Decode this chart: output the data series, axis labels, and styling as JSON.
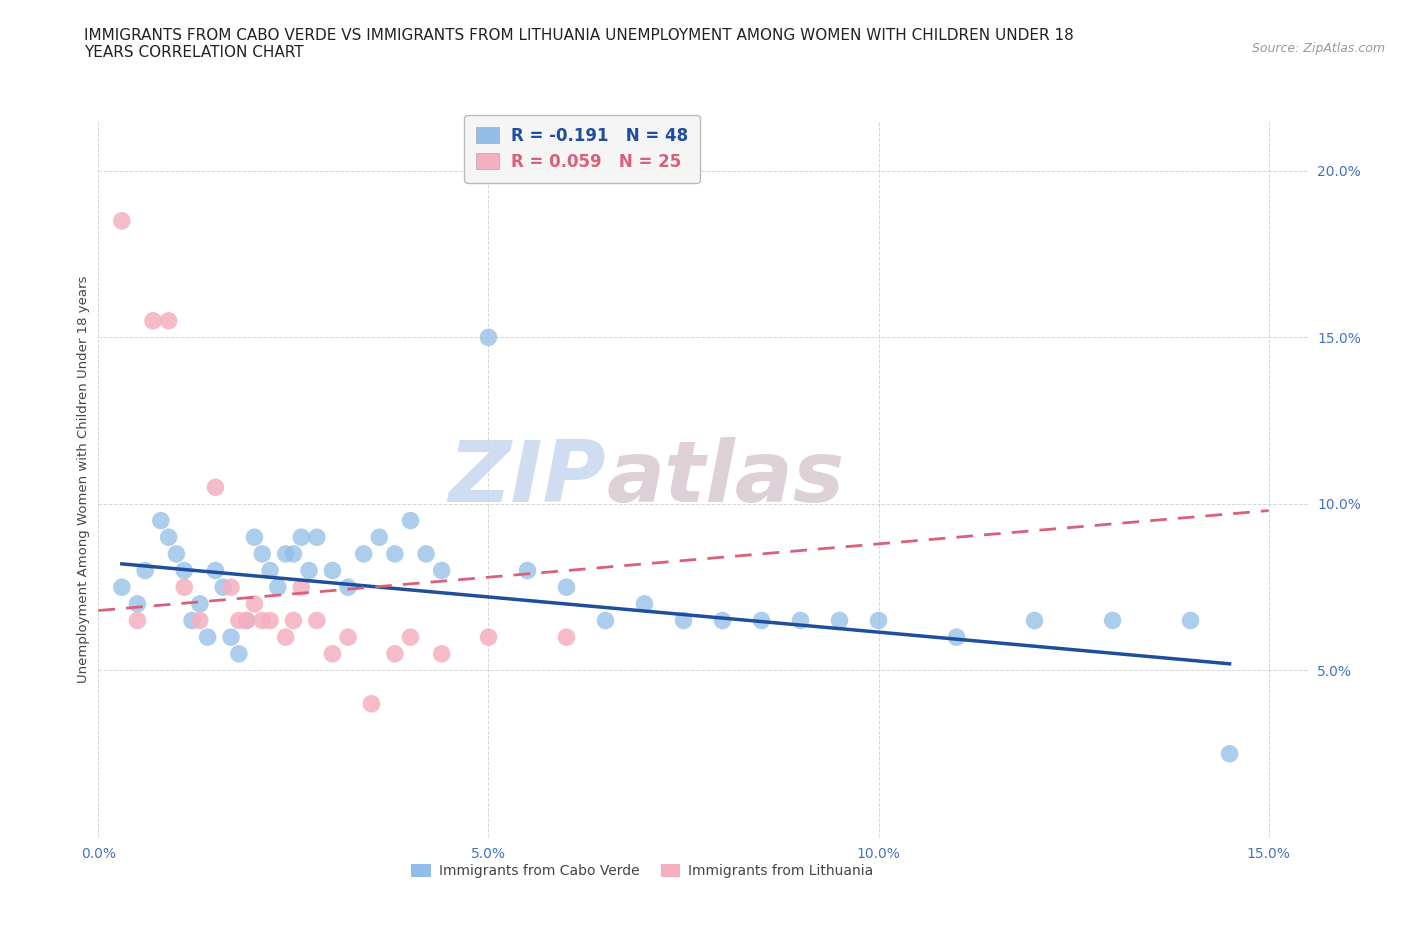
{
  "title_line1": "IMMIGRANTS FROM CABO VERDE VS IMMIGRANTS FROM LITHUANIA UNEMPLOYMENT AMONG WOMEN WITH CHILDREN UNDER 18",
  "title_line2": "YEARS CORRELATION CHART",
  "source": "Source: ZipAtlas.com",
  "ylabel": "Unemployment Among Women with Children Under 18 years",
  "watermark_zip": "ZIP",
  "watermark_atlas": "atlas",
  "legend1_label": "R = -0.191   N = 48",
  "legend2_label": "R = 0.059   N = 25",
  "cabo_verde_color": "#92bde8",
  "lithuania_color": "#f5afc0",
  "cabo_verde_line_color": "#1f4e9c",
  "lithuania_line_color": "#d9607a",
  "xlim": [
    0.0,
    0.155
  ],
  "ylim": [
    0.0,
    0.215
  ],
  "xticks": [
    0.0,
    0.05,
    0.1,
    0.15
  ],
  "yticks": [
    0.05,
    0.1,
    0.15,
    0.2
  ],
  "xtick_labels": [
    "0.0%",
    "5.0%",
    "10.0%",
    "15.0%"
  ],
  "ytick_labels": [
    "5.0%",
    "10.0%",
    "15.0%",
    "20.0%"
  ],
  "cabo_verde_x": [
    0.003,
    0.005,
    0.006,
    0.008,
    0.009,
    0.01,
    0.011,
    0.012,
    0.013,
    0.014,
    0.015,
    0.016,
    0.017,
    0.018,
    0.019,
    0.02,
    0.021,
    0.022,
    0.023,
    0.024,
    0.025,
    0.026,
    0.027,
    0.028,
    0.03,
    0.032,
    0.034,
    0.036,
    0.038,
    0.04,
    0.042,
    0.044,
    0.05,
    0.055,
    0.06,
    0.065,
    0.07,
    0.075,
    0.08,
    0.085,
    0.09,
    0.095,
    0.1,
    0.11,
    0.12,
    0.13,
    0.14,
    0.145
  ],
  "cabo_verde_y": [
    0.075,
    0.07,
    0.08,
    0.095,
    0.09,
    0.085,
    0.08,
    0.065,
    0.07,
    0.06,
    0.08,
    0.075,
    0.06,
    0.055,
    0.065,
    0.09,
    0.085,
    0.08,
    0.075,
    0.085,
    0.085,
    0.09,
    0.08,
    0.09,
    0.08,
    0.075,
    0.085,
    0.09,
    0.085,
    0.095,
    0.085,
    0.08,
    0.15,
    0.08,
    0.075,
    0.065,
    0.07,
    0.065,
    0.065,
    0.065,
    0.065,
    0.065,
    0.065,
    0.06,
    0.065,
    0.065,
    0.065,
    0.025
  ],
  "lithuania_x": [
    0.003,
    0.005,
    0.007,
    0.009,
    0.011,
    0.013,
    0.015,
    0.017,
    0.018,
    0.019,
    0.02,
    0.021,
    0.022,
    0.024,
    0.025,
    0.026,
    0.028,
    0.03,
    0.032,
    0.035,
    0.038,
    0.04,
    0.044,
    0.05,
    0.06
  ],
  "lithuania_y": [
    0.185,
    0.065,
    0.155,
    0.155,
    0.075,
    0.065,
    0.105,
    0.075,
    0.065,
    0.065,
    0.07,
    0.065,
    0.065,
    0.06,
    0.065,
    0.075,
    0.065,
    0.055,
    0.06,
    0.04,
    0.055,
    0.06,
    0.055,
    0.06,
    0.06
  ],
  "background_color": "#ffffff",
  "grid_color": "#cccccc",
  "title_fontsize": 11,
  "tick_label_color": "#4472c4",
  "source_fontsize": 9,
  "legend_fontsize": 12,
  "cabo_line_x0": 0.003,
  "cabo_line_x1": 0.145,
  "cabo_line_y0": 0.082,
  "cabo_line_y1": 0.052,
  "lith_line_x0": 0.0,
  "lith_line_x1": 0.15,
  "lith_line_y0": 0.068,
  "lith_line_y1": 0.098
}
